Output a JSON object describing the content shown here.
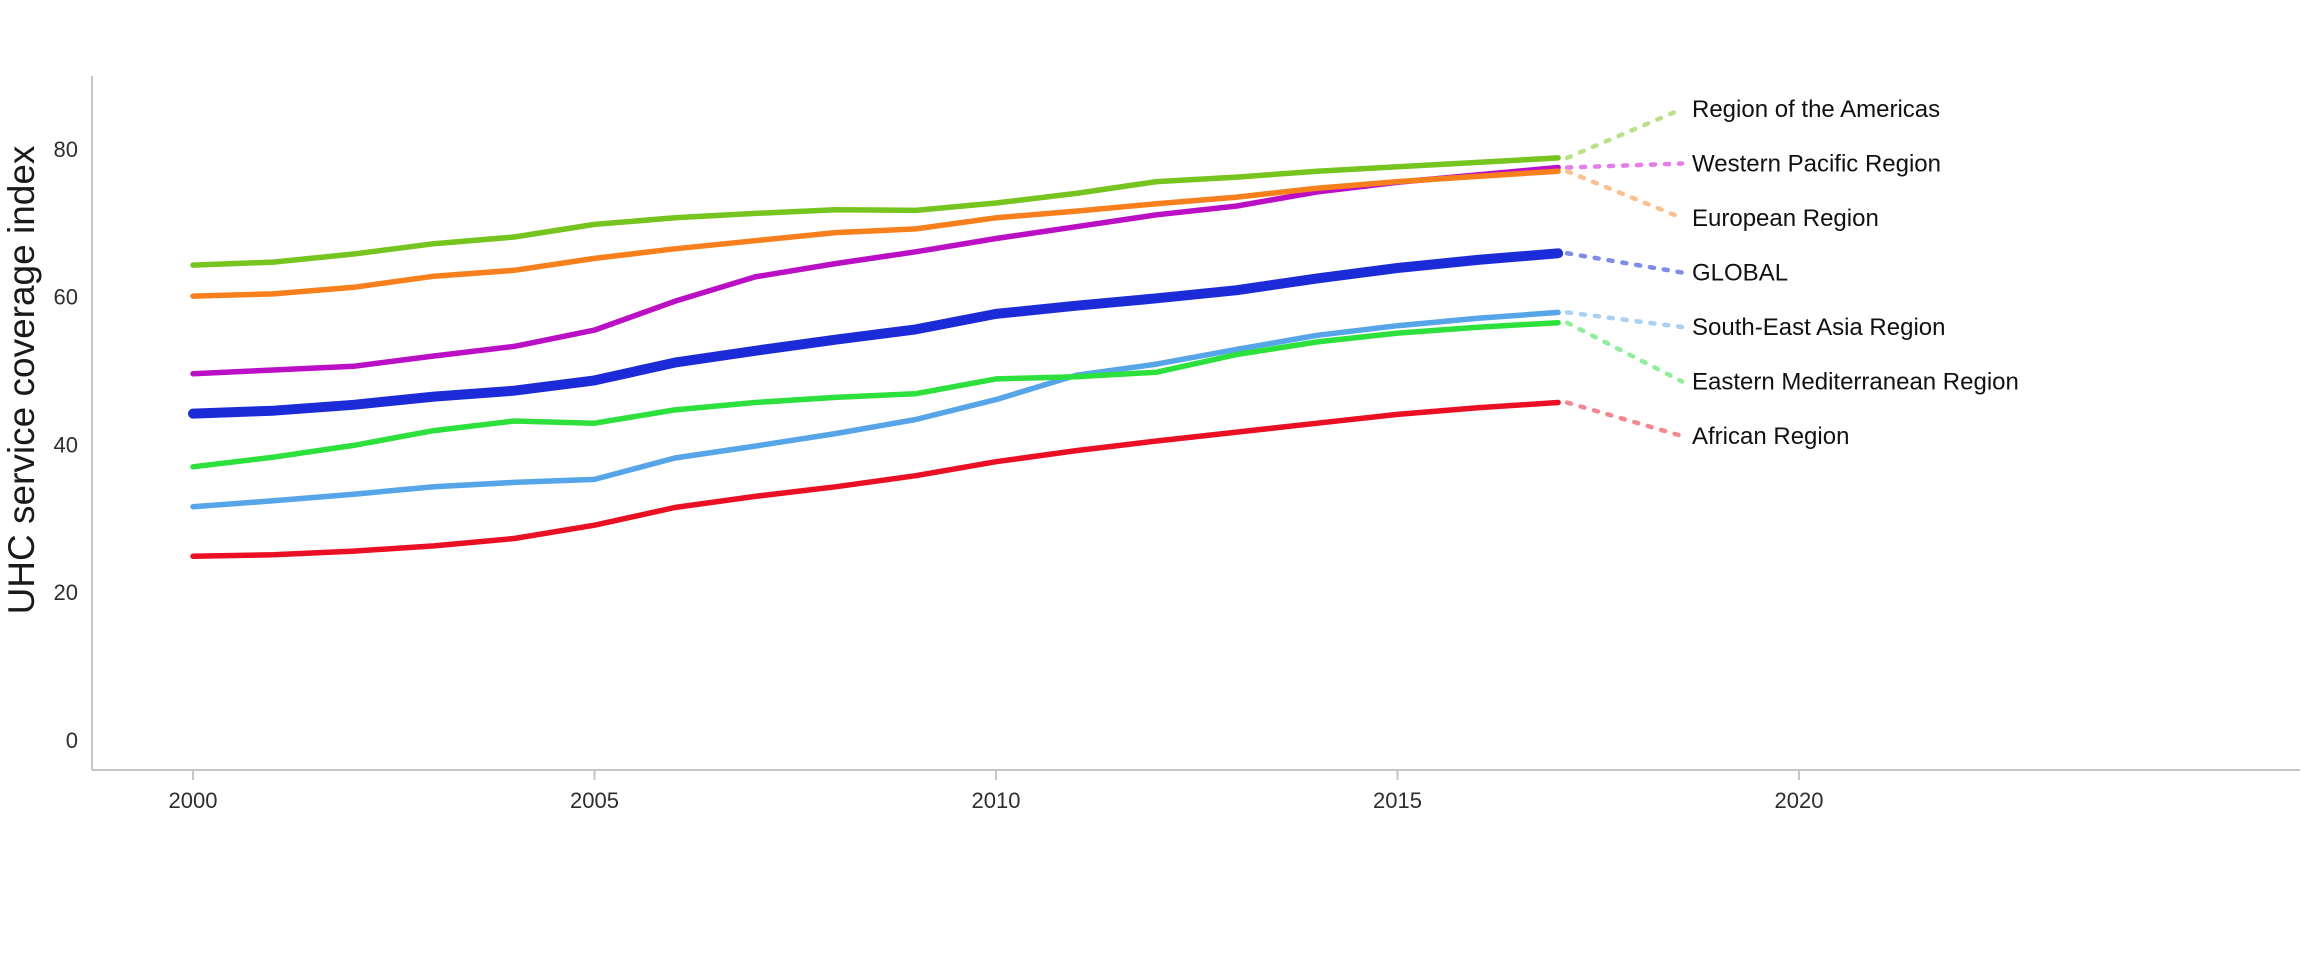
{
  "chart_data": {
    "type": "line",
    "title": "",
    "xlabel": "",
    "ylabel": "UHC service coverage index",
    "x": [
      2000,
      2001,
      2002,
      2003,
      2004,
      2005,
      2006,
      2007,
      2008,
      2009,
      2010,
      2011,
      2012,
      2013,
      2014,
      2015,
      2016,
      2017
    ],
    "x_ticks": [
      2000,
      2005,
      2010,
      2015,
      2020
    ],
    "y_ticks": [
      0,
      20,
      40,
      60,
      80
    ],
    "xlim": [
      1998.7,
      2026.3
    ],
    "ylim": [
      0,
      90
    ],
    "grid": false,
    "legend_position": "right-direct-labels",
    "axis_color": "#c6c6c6",
    "tick_label_color": "#2e2e2e",
    "series_label_color": "#111111",
    "axis_title_color": "#1a1a1a",
    "series": [
      {
        "name": "Region of the Americas",
        "color": "#76C41E",
        "leader_color": "#b9e287",
        "line_width": 5.5,
        "values": [
          64.4,
          64.8,
          65.9,
          67.3,
          68.2,
          69.9,
          70.8,
          71.4,
          71.9,
          71.8,
          72.8,
          74.1,
          75.7,
          76.3,
          77.1,
          77.7,
          78.3,
          78.9
        ]
      },
      {
        "name": "Western Pacific Region",
        "color": "#BB0FC6",
        "leader_color": "#e47ce9",
        "line_width": 5.5,
        "values": [
          49.7,
          50.2,
          50.7,
          52.1,
          53.4,
          55.6,
          59.5,
          62.8,
          64.6,
          66.2,
          68.0,
          69.6,
          71.2,
          72.4,
          74.3,
          75.6,
          76.6,
          77.6
        ]
      },
      {
        "name": "European Region",
        "color": "#F8801C",
        "leader_color": "#fbc08b",
        "line_width": 5.5,
        "values": [
          60.2,
          60.5,
          61.4,
          62.9,
          63.7,
          65.3,
          66.6,
          67.7,
          68.8,
          69.3,
          70.8,
          71.7,
          72.7,
          73.6,
          74.8,
          75.7,
          76.4,
          77.1
        ]
      },
      {
        "name": "GLOBAL",
        "color": "#1C2BD8",
        "leader_color": "#7e8ce9",
        "line_width": 10,
        "values": [
          44.3,
          44.7,
          45.5,
          46.6,
          47.4,
          48.8,
          51.2,
          52.8,
          54.3,
          55.7,
          57.8,
          58.9,
          59.9,
          61.0,
          62.6,
          64.0,
          65.1,
          66.0
        ]
      },
      {
        "name": "South-East Asia Region",
        "color": "#55A5E8",
        "leader_color": "#a9d1f4",
        "line_width": 5.5,
        "values": [
          31.7,
          32.5,
          33.4,
          34.4,
          35.0,
          35.4,
          38.3,
          39.9,
          41.6,
          43.5,
          46.2,
          49.5,
          51.0,
          53.0,
          54.9,
          56.2,
          57.2,
          58.0
        ]
      },
      {
        "name": "Eastern Mediterranean Region",
        "color": "#2DE13C",
        "leader_color": "#8fee99",
        "line_width": 5.5,
        "values": [
          37.1,
          38.4,
          40.0,
          42.0,
          43.3,
          43.0,
          44.8,
          45.8,
          46.5,
          47.0,
          49.0,
          49.3,
          49.9,
          52.3,
          54.0,
          55.2,
          56.0,
          56.6
        ]
      },
      {
        "name": "African Region",
        "color": "#EB0F23",
        "leader_color": "#f4878f",
        "line_width": 5.5,
        "values": [
          25.0,
          25.2,
          25.7,
          26.4,
          27.4,
          29.2,
          31.6,
          33.1,
          34.4,
          35.9,
          37.8,
          39.3,
          40.6,
          41.8,
          43.0,
          44.2,
          45.1,
          45.8
        ]
      }
    ]
  }
}
